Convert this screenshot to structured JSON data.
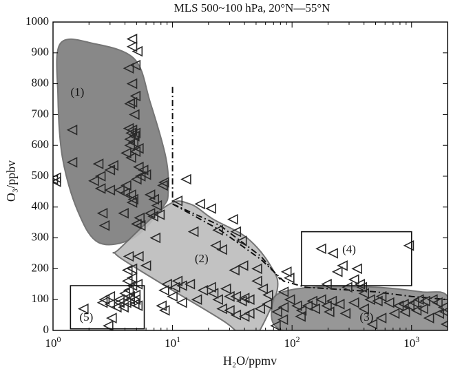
{
  "chart_data": {
    "type": "scatter",
    "title": "MLS 500~100 hPa, 20°N—55°N",
    "xlabel": "H₂O/ppmv",
    "ylabel": "O₃/ppbv",
    "xscale": "log",
    "xlim": [
      1,
      2000
    ],
    "ylim": [
      0,
      1000
    ],
    "grid": false,
    "marker": "left-pointing triangle (open)",
    "x_ticks": [
      {
        "value": 1,
        "base": "10",
        "exp": "0"
      },
      {
        "value": 10,
        "base": "10",
        "exp": "1"
      },
      {
        "value": 100,
        "base": "10",
        "exp": "2"
      },
      {
        "value": 1000,
        "base": "10",
        "exp": "3"
      }
    ],
    "y_ticks": [
      "0",
      "100",
      "200",
      "300",
      "400",
      "500",
      "600",
      "700",
      "800",
      "900",
      "1000"
    ],
    "regions": [
      {
        "label": "(1)",
        "shape": "shaded",
        "color": "#7e7e7e",
        "outline": [
          [
            1.15,
            930
          ],
          [
            2.2,
            930
          ],
          [
            4.8,
            880
          ],
          [
            6.5,
            740
          ],
          [
            8.8,
            560
          ],
          [
            9.2,
            450
          ],
          [
            8.3,
            400
          ],
          [
            4.7,
            300
          ],
          [
            2.4,
            285
          ],
          [
            1.6,
            390
          ],
          [
            1.2,
            560
          ],
          [
            1.1,
            760
          ]
        ]
      },
      {
        "label": "(2)",
        "shape": "shaded",
        "color": "#bdbdbd",
        "outline": [
          [
            3.6,
            265
          ],
          [
            9,
            405
          ],
          [
            14,
            410
          ],
          [
            22,
            360
          ],
          [
            42,
            300
          ],
          [
            66,
            210
          ],
          [
            75,
            130
          ],
          [
            50,
            -20
          ],
          [
            40,
            -30
          ],
          [
            28,
            25
          ],
          [
            10,
            130
          ],
          [
            4.6,
            210
          ],
          [
            3.3,
            250
          ]
        ]
      },
      {
        "label": "(3)",
        "shape": "shaded",
        "color": "#8f8f8f",
        "outline": [
          [
            78,
            120
          ],
          [
            150,
            140
          ],
          [
            500,
            140
          ],
          [
            1200,
            125
          ],
          [
            2000,
            110
          ],
          [
            2000,
            -20
          ],
          [
            1500,
            -25
          ],
          [
            400,
            -10
          ],
          [
            120,
            -10
          ],
          [
            72,
            15
          ],
          [
            68,
            80
          ]
        ]
      },
      {
        "label": "(4)",
        "shape": "box",
        "outline": [
          [
            120,
            320
          ],
          [
            1000,
            320
          ],
          [
            1000,
            145
          ],
          [
            120,
            145
          ]
        ]
      },
      {
        "label": "(5)",
        "shape": "box",
        "outline": [
          [
            1.4,
            145
          ],
          [
            5.8,
            145
          ],
          [
            5.8,
            5
          ],
          [
            1.4,
            5
          ]
        ]
      }
    ],
    "label_positions": [
      [
        1.6,
        770
      ],
      [
        17.5,
        230
      ],
      [
        420,
        40
      ],
      [
        300,
        260
      ],
      [
        1.9,
        40
      ]
    ],
    "boundary_lines": [
      {
        "style": "dash-dot",
        "points": [
          [
            10,
            790
          ],
          [
            10,
            410
          ],
          [
            25,
            325
          ],
          [
            55,
            230
          ],
          [
            85,
            160
          ],
          [
            130,
            140
          ],
          [
            500,
            125
          ],
          [
            1000,
            110
          ],
          [
            2000,
            100
          ]
        ]
      },
      {
        "style": "dash-dot",
        "points": [
          [
            10,
            410
          ],
          [
            25,
            340
          ],
          [
            55,
            240
          ],
          [
            80,
            165
          ]
        ]
      }
    ],
    "points": [
      [
        4.6,
        945
      ],
      [
        4.6,
        920
      ],
      [
        5.1,
        905
      ],
      [
        4.3,
        850
      ],
      [
        4.9,
        860
      ],
      [
        4.6,
        800
      ],
      [
        4.9,
        760
      ],
      [
        4.6,
        740
      ],
      [
        4.4,
        735
      ],
      [
        4.8,
        700
      ],
      [
        1.45,
        650
      ],
      [
        4.3,
        655
      ],
      [
        4.6,
        650
      ],
      [
        4.9,
        640
      ],
      [
        4.5,
        640
      ],
      [
        4.8,
        630
      ],
      [
        4.4,
        620
      ],
      [
        4.7,
        610
      ],
      [
        4.4,
        600
      ],
      [
        5.2,
        590
      ],
      [
        4.9,
        580
      ],
      [
        4.1,
        575
      ],
      [
        4.5,
        560
      ],
      [
        1.45,
        545
      ],
      [
        2.4,
        540
      ],
      [
        3.2,
        535
      ],
      [
        3.0,
        520
      ],
      [
        2.5,
        500
      ],
      [
        5.2,
        530
      ],
      [
        5.7,
        520
      ],
      [
        5.4,
        500
      ],
      [
        6.0,
        505
      ],
      [
        1.06,
        495
      ],
      [
        1.0,
        490
      ],
      [
        1.06,
        482
      ],
      [
        2.2,
        485
      ],
      [
        2.5,
        460
      ],
      [
        3.0,
        455
      ],
      [
        3.6,
        455
      ],
      [
        4.0,
        445
      ],
      [
        4.5,
        440
      ],
      [
        5.0,
        490
      ],
      [
        4.1,
        470
      ],
      [
        4.7,
        425
      ],
      [
        4.6,
        415
      ],
      [
        6.5,
        440
      ],
      [
        7.0,
        425
      ],
      [
        7.4,
        405
      ],
      [
        8.5,
        480
      ],
      [
        2.6,
        380
      ],
      [
        3.9,
        380
      ],
      [
        6.5,
        380
      ],
      [
        5.3,
        365
      ],
      [
        2.7,
        340
      ],
      [
        5.0,
        345
      ],
      [
        5.4,
        340
      ],
      [
        6.9,
        370
      ],
      [
        7.8,
        375
      ],
      [
        8.3,
        470
      ],
      [
        11,
        420
      ],
      [
        13,
        490
      ],
      [
        17,
        410
      ],
      [
        21,
        395
      ],
      [
        32,
        360
      ],
      [
        15,
        320
      ],
      [
        24,
        325
      ],
      [
        38,
        290
      ],
      [
        23,
        275
      ],
      [
        26,
        262
      ],
      [
        34,
        320
      ],
      [
        7.2,
        300
      ],
      [
        4.3,
        240
      ],
      [
        5.2,
        240
      ],
      [
        6.0,
        210
      ],
      [
        4.6,
        200
      ],
      [
        4.2,
        195
      ],
      [
        4.6,
        170
      ],
      [
        4.2,
        160
      ],
      [
        5.1,
        150
      ],
      [
        4.6,
        145
      ],
      [
        4.3,
        130
      ],
      [
        4.0,
        120
      ],
      [
        4.9,
        115
      ],
      [
        4.4,
        110
      ],
      [
        3.6,
        100
      ],
      [
        3.6,
        90
      ],
      [
        4.1,
        90
      ],
      [
        4.8,
        85
      ],
      [
        5.1,
        80
      ],
      [
        3.9,
        75
      ],
      [
        3.4,
        75
      ],
      [
        3.0,
        85
      ],
      [
        2.6,
        90
      ],
      [
        2.7,
        100
      ],
      [
        3.0,
        110
      ],
      [
        4.4,
        100
      ],
      [
        4.9,
        100
      ],
      [
        1.8,
        70
      ],
      [
        3.1,
        40
      ],
      [
        2.9,
        15
      ],
      [
        9,
        150
      ],
      [
        8.5,
        130
      ],
      [
        10.5,
        140
      ],
      [
        11,
        160
      ],
      [
        12,
        145
      ],
      [
        14,
        150
      ],
      [
        10,
        110
      ],
      [
        12,
        90
      ],
      [
        8.1,
        80
      ],
      [
        8.6,
        65
      ],
      [
        16,
        100
      ],
      [
        18,
        130
      ],
      [
        21,
        140
      ],
      [
        22,
        120
      ],
      [
        24,
        100
      ],
      [
        28,
        135
      ],
      [
        30,
        110
      ],
      [
        34,
        110
      ],
      [
        38,
        95
      ],
      [
        40,
        105
      ],
      [
        44,
        100
      ],
      [
        26,
        70
      ],
      [
        30,
        65
      ],
      [
        34,
        50
      ],
      [
        40,
        45
      ],
      [
        44,
        55
      ],
      [
        54,
        70
      ],
      [
        57,
        135
      ],
      [
        51,
        160
      ],
      [
        33,
        195
      ],
      [
        39,
        210
      ],
      [
        51,
        200
      ],
      [
        63,
        115
      ],
      [
        62,
        85
      ],
      [
        75,
        60
      ],
      [
        84,
        35
      ],
      [
        73,
        15
      ],
      [
        85,
        75
      ],
      [
        90,
        190
      ],
      [
        95,
        170
      ],
      [
        85,
        125
      ],
      [
        96,
        100
      ],
      [
        110,
        80
      ],
      [
        120,
        65
      ],
      [
        118,
        45
      ],
      [
        135,
        80
      ],
      [
        148,
        95
      ],
      [
        156,
        70
      ],
      [
        175,
        100
      ],
      [
        195,
        80
      ],
      [
        215,
        95
      ],
      [
        175,
        265
      ],
      [
        195,
        150
      ],
      [
        220,
        250
      ],
      [
        240,
        190
      ],
      [
        265,
        210
      ],
      [
        290,
        140
      ],
      [
        330,
        165
      ],
      [
        350,
        200
      ],
      [
        370,
        150
      ],
      [
        385,
        140
      ],
      [
        400,
        120
      ],
      [
        330,
        90
      ],
      [
        280,
        55
      ],
      [
        250,
        85
      ],
      [
        205,
        60
      ],
      [
        450,
        100
      ],
      [
        520,
        95
      ],
      [
        650,
        90
      ],
      [
        780,
        80
      ],
      [
        860,
        85
      ],
      [
        960,
        80
      ],
      [
        1050,
        90
      ],
      [
        1150,
        100
      ],
      [
        1300,
        95
      ],
      [
        1500,
        100
      ],
      [
        1650,
        90
      ],
      [
        1850,
        75
      ],
      [
        1950,
        20
      ],
      [
        1400,
        40
      ],
      [
        1100,
        65
      ],
      [
        880,
        60
      ],
      [
        720,
        55
      ],
      [
        560,
        40
      ],
      [
        470,
        20
      ],
      [
        400,
        70
      ],
      [
        1900,
        60
      ],
      [
        1700,
        55
      ],
      [
        1250,
        70
      ],
      [
        950,
        275
      ],
      [
        560,
        110
      ]
    ]
  }
}
